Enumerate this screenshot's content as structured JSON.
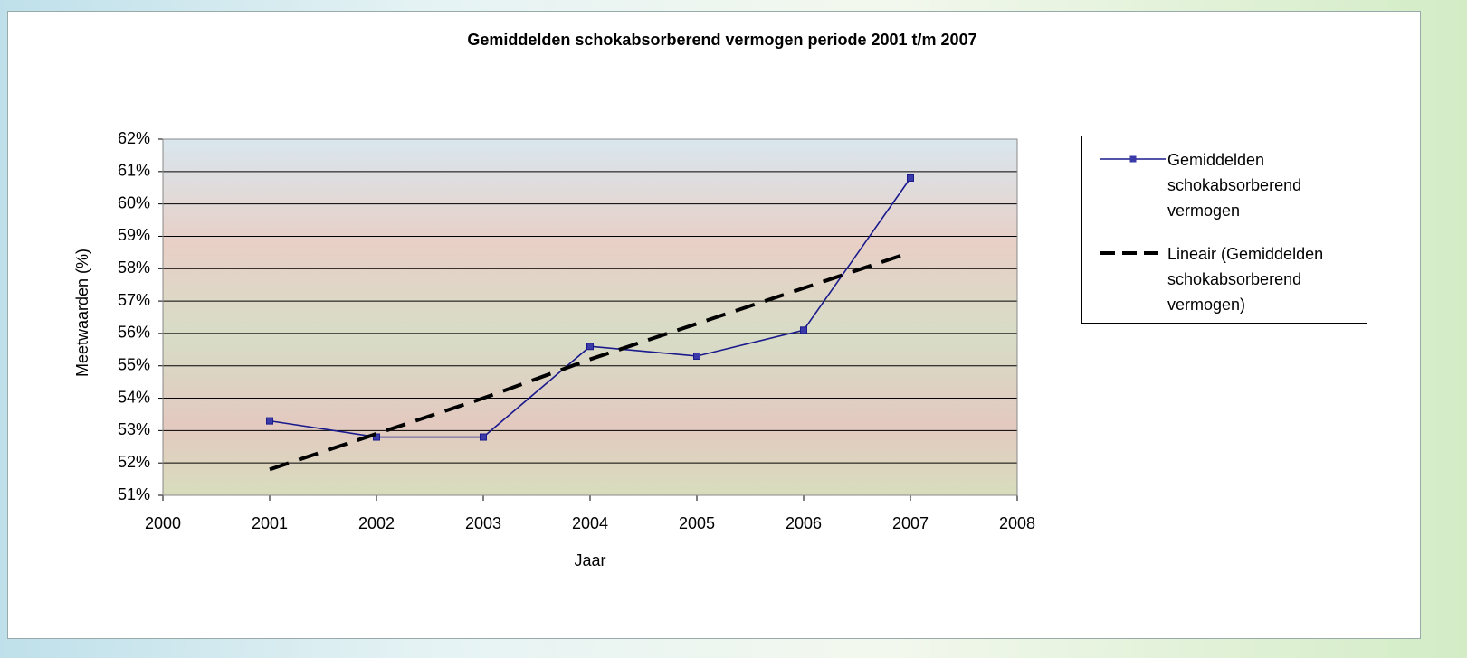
{
  "chart_data": {
    "type": "line",
    "title": "Gemiddelden schokabsorberend vermogen periode 2001 t/m 2007",
    "x_label": "Jaar",
    "y_label": "Meetwaarden (%)",
    "x": [
      2001,
      2002,
      2003,
      2004,
      2005,
      2006,
      2007
    ],
    "series": [
      {
        "name": "Gemiddelden schokabsorberend vermogen",
        "color": "#1a1a8c",
        "line_style": "solid",
        "marker": "square",
        "values": [
          53.3,
          52.8,
          52.8,
          55.6,
          55.3,
          56.1,
          60.8
        ]
      },
      {
        "name": "Lineair (Gemiddelden schokabsorberend vermogen)",
        "color": "#000000",
        "line_style": "dashed",
        "values": [
          51.8,
          52.9,
          54.0,
          55.2,
          56.3,
          57.4,
          58.5
        ]
      }
    ],
    "xlim": [
      2000,
      2008
    ],
    "xticks": [
      2000,
      2001,
      2002,
      2003,
      2004,
      2005,
      2006,
      2007,
      2008
    ],
    "ylim": [
      51,
      62
    ],
    "yticks": [
      {
        "value": 51,
        "label": "51%"
      },
      {
        "value": 52,
        "label": "52%"
      },
      {
        "value": 53,
        "label": "53%"
      },
      {
        "value": 54,
        "label": "54%"
      },
      {
        "value": 55,
        "label": "55%"
      },
      {
        "value": 56,
        "label": "56%"
      },
      {
        "value": 57,
        "label": "57%"
      },
      {
        "value": 58,
        "label": "58%"
      },
      {
        "value": 59,
        "label": "59%"
      },
      {
        "value": 60,
        "label": "60%"
      },
      {
        "value": 61,
        "label": "61%"
      },
      {
        "value": 62,
        "label": "62%"
      }
    ],
    "grid": true,
    "legend": "right"
  }
}
